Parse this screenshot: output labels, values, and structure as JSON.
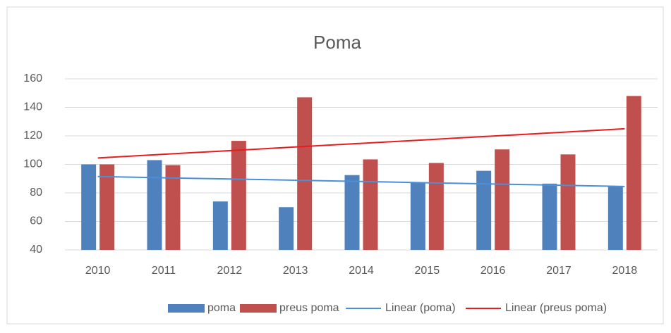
{
  "chart_data": {
    "type": "bar",
    "title": "Poma",
    "categories": [
      "2010",
      "2011",
      "2012",
      "2013",
      "2014",
      "2015",
      "2016",
      "2017",
      "2018"
    ],
    "series": [
      {
        "name": "poma",
        "type": "bar",
        "color": "#4f81bd",
        "values": [
          100,
          103,
          74,
          70,
          92.5,
          87,
          95.5,
          86.5,
          84.5
        ]
      },
      {
        "name": "preus poma",
        "type": "bar",
        "color": "#c0504d",
        "values": [
          100,
          99.5,
          116.5,
          147,
          103.5,
          101,
          110.5,
          107,
          148
        ]
      },
      {
        "name": "Linear (poma)",
        "type": "line",
        "color": "#4a90d9",
        "values": [
          91.5,
          90.6,
          89.75,
          88.9,
          88,
          87.1,
          86.25,
          85.4,
          84.5
        ]
      },
      {
        "name": "Linear (preus poma)",
        "type": "line",
        "color": "#e81c1c",
        "values": [
          104.5,
          107.1,
          109.6,
          112.2,
          114.75,
          117.3,
          119.9,
          122.4,
          125
        ]
      }
    ],
    "ylim": [
      40,
      160
    ],
    "yticks": [
      40,
      60,
      80,
      100,
      120,
      140,
      160
    ],
    "grid": true,
    "legend": "bottom"
  }
}
